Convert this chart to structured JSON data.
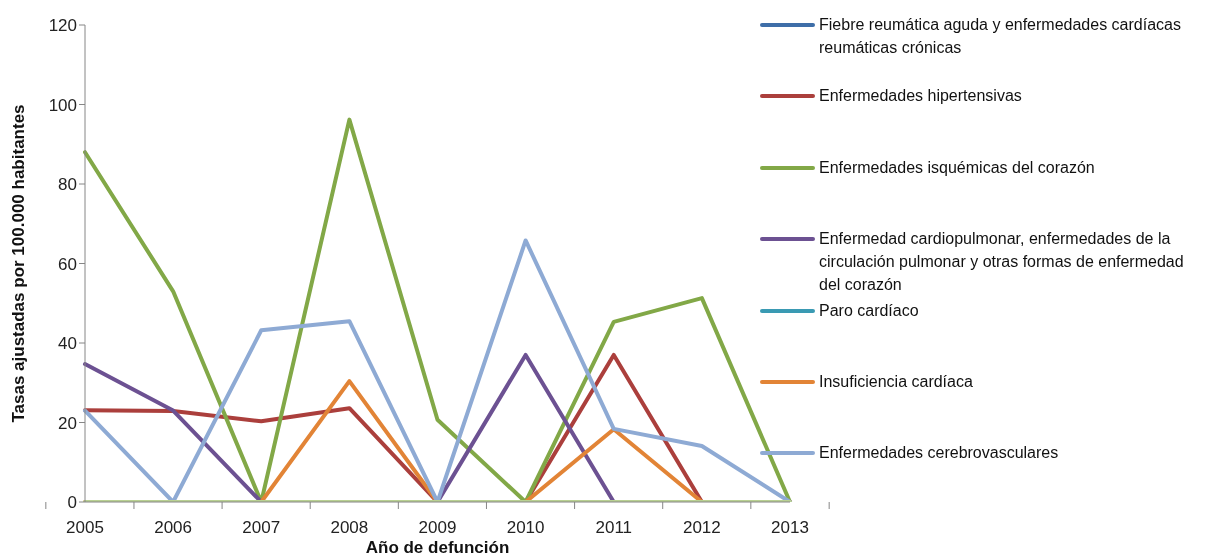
{
  "chart_data": {
    "type": "line",
    "xlabel": "Año de defunción",
    "ylabel": "Tasas ajustadas por 100.000 habitantes",
    "categories": [
      "2005",
      "2006",
      "2007",
      "2008",
      "2009",
      "2010",
      "2011",
      "2012",
      "2013"
    ],
    "ylim": [
      0,
      120
    ],
    "yticks": [
      0,
      20,
      40,
      60,
      80,
      100,
      120
    ],
    "grid": false,
    "legend": "right",
    "marker": "none",
    "line_style": "solid",
    "series": [
      {
        "name": "Fiebre reumática aguda y enfermedades cardíacas reumáticas crónicas",
        "color": "#3e6ea8",
        "values": [
          null,
          null,
          null,
          null,
          null,
          null,
          null,
          null,
          null
        ]
      },
      {
        "name": "Enfermedades hipertensivas",
        "color": "#ab3f3c",
        "values": [
          23.1,
          22.9,
          20.3,
          23.6,
          0,
          0,
          37,
          0,
          0
        ]
      },
      {
        "name": "Enfermedades isquémicas del corazón",
        "color": "#82a847",
        "values": [
          88,
          53,
          0,
          96.2,
          20.7,
          0,
          45.3,
          51.3,
          0
        ]
      },
      {
        "name": "Enfermedad cardiopulmonar, enfermedades de la circulación pulmonar y otras formas de enfermedad del corazón",
        "color": "#6c5192",
        "values": [
          34.7,
          23,
          0,
          0,
          0,
          37,
          0,
          0,
          0
        ]
      },
      {
        "name": "Paro cardíaco",
        "color": "#3a9ab3",
        "values": [
          null,
          null,
          null,
          null,
          null,
          null,
          null,
          null,
          null
        ]
      },
      {
        "name": "Insuficiencia cardíaca",
        "color": "#e28436",
        "values": [
          0,
          0,
          0,
          30.4,
          0,
          0,
          18.3,
          0,
          0
        ]
      },
      {
        "name": "Enfermedades cerebrovasculares",
        "color": "#8eaad4",
        "values": [
          23,
          0,
          43.2,
          45.5,
          0,
          65.8,
          18.4,
          14.1,
          0
        ]
      },
      {
        "color": "#b9d192",
        "values": [
          0,
          0,
          0,
          0,
          0,
          0,
          0,
          0,
          0
        ]
      }
    ]
  }
}
